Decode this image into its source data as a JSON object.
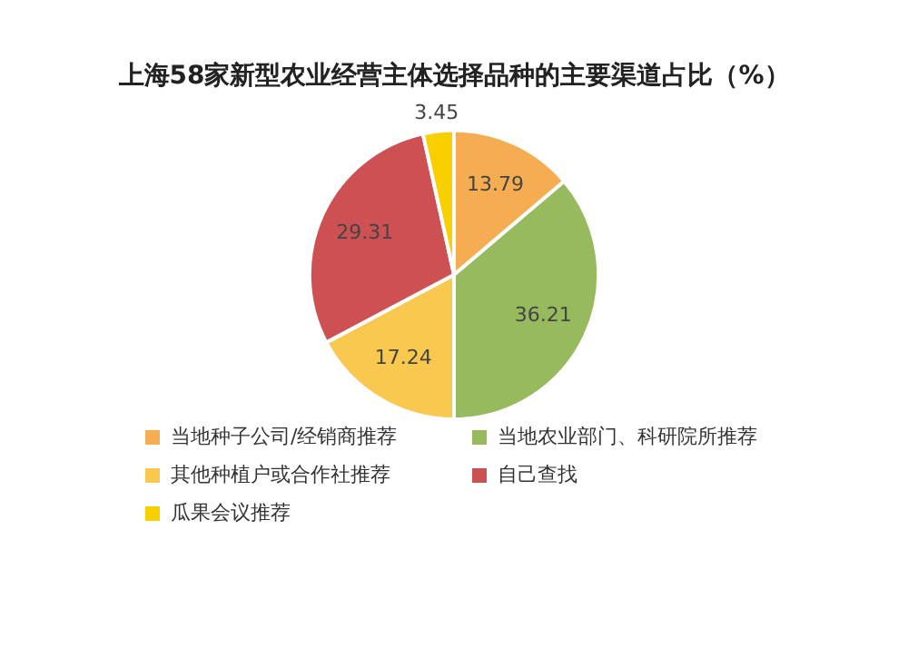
{
  "chart_data": {
    "type": "pie",
    "title": "上海58家新型农业经营主体选择品种的主要渠道占比（%）",
    "categories": [
      "当地种子公司/经销商推荐",
      "当地农业部门、科研院所推荐",
      "其他种植户或合作社推荐",
      "自己查找",
      "瓜果会议推荐"
    ],
    "values": [
      13.79,
      36.21,
      17.24,
      29.31,
      3.45
    ],
    "colors": [
      "#f6ad52",
      "#98ba5f",
      "#f9c84e",
      "#cd5153",
      "#f8d000"
    ],
    "data_labels": true,
    "legend": "bottom"
  }
}
